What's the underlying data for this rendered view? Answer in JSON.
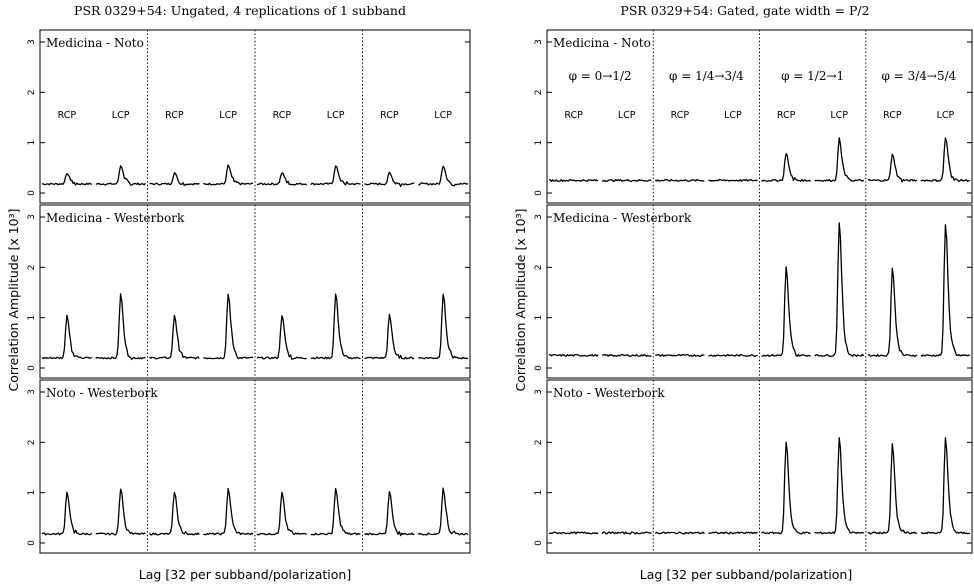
{
  "chart_data": [
    {
      "type": "line",
      "title": "PSR 0329+54:  Ungated, 4 replications of 1 subband",
      "xlabel": "Lag  [32 per subband/polarization]",
      "ylabel": "Correlation Amplitude  [x 10³]",
      "ylim": [
        0,
        3
      ],
      "yticks": [
        "0",
        "1",
        "2",
        "3"
      ],
      "segments": 8,
      "separators_after_segment": [
        2,
        4,
        6
      ],
      "segment_labels": [
        "RCP",
        "LCP",
        "RCP",
        "LCP",
        "RCP",
        "LCP",
        "RCP",
        "LCP"
      ],
      "phase_labels": [],
      "panels": [
        {
          "name": "Medicina - Noto",
          "baseline": 0.18,
          "peaks": [
            0.4,
            0.55,
            0.4,
            0.55,
            0.4,
            0.55,
            0.4,
            0.55
          ]
        },
        {
          "name": "Medicina - Westerbork",
          "baseline": 0.2,
          "peaks": [
            1.05,
            1.47,
            1.05,
            1.47,
            1.05,
            1.47,
            1.05,
            1.47
          ]
        },
        {
          "name": "Noto - Westerbork",
          "baseline": 0.18,
          "peaks": [
            1.02,
            1.08,
            1.02,
            1.08,
            1.02,
            1.08,
            1.02,
            1.08
          ]
        }
      ]
    },
    {
      "type": "line",
      "title": "PSR 0329+54:  Gated, gate width = P/2",
      "xlabel": "Lag  [32 per subband/polarization]",
      "ylabel": "Correlation Amplitude  [x 10³]",
      "ylim": [
        0,
        3
      ],
      "yticks": [
        "0",
        "1",
        "2",
        "3"
      ],
      "segments": 8,
      "separators_after_segment": [
        2,
        4,
        6
      ],
      "segment_labels": [
        "RCP",
        "LCP",
        "RCP",
        "LCP",
        "RCP",
        "LCP",
        "RCP",
        "LCP"
      ],
      "phase_labels": [
        "φ = 0→1/2",
        "φ = 1/4→3/4",
        "φ = 1/2→1",
        "φ = 3/4→5/4"
      ],
      "panels": [
        {
          "name": "Medicina - Noto",
          "baseline": 0.25,
          "peaks": [
            0,
            0,
            0,
            0,
            0.8,
            1.08,
            0.78,
            1.1
          ]
        },
        {
          "name": "Medicina - Westerbork",
          "baseline": 0.25,
          "peaks": [
            0,
            0,
            0,
            0,
            2.0,
            2.9,
            2.0,
            2.85
          ]
        },
        {
          "name": "Noto - Westerbork",
          "baseline": 0.2,
          "peaks": [
            0,
            0,
            0,
            0,
            2.02,
            2.1,
            1.98,
            2.08
          ]
        }
      ]
    }
  ]
}
